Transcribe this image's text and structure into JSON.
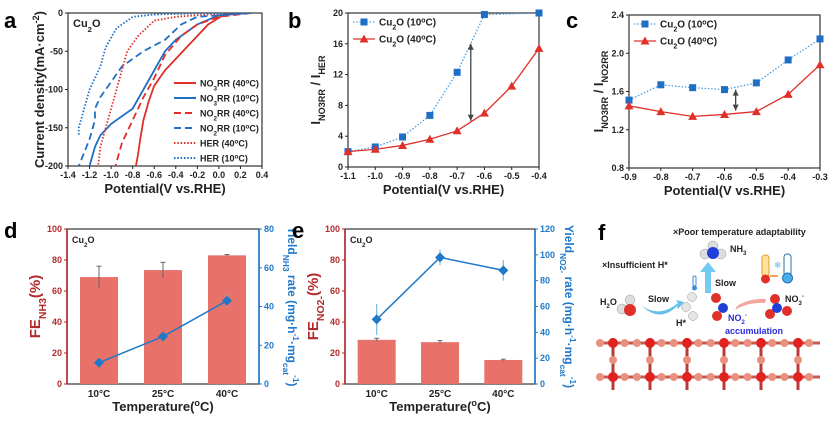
{
  "panel_labels": [
    "a",
    "b",
    "c",
    "d",
    "e",
    "f"
  ],
  "chart_data": [
    {
      "id": "a",
      "type": "line",
      "inset_label": [
        {
          "t": "Cu"
        },
        {
          "t": "2",
          "sub": true
        },
        {
          "t": "O"
        }
      ],
      "xlabel": [
        {
          "t": "Potential(V vs.RHE)"
        }
      ],
      "ylabel": [
        {
          "t": "Current density(mA·cm"
        },
        {
          "t": "-2",
          "sup": true
        },
        {
          "t": ")"
        }
      ],
      "xlim": [
        -1.4,
        0.4
      ],
      "ylim": [
        -200,
        0
      ],
      "xticks": [
        -1.4,
        -1.2,
        -1.0,
        -0.8,
        -0.6,
        -0.4,
        -0.2,
        0.0,
        0.2,
        0.4
      ],
      "xtick_labels": [
        "-1.4",
        "-1.2",
        "-1.0",
        "-0.8",
        "-0.6",
        "-0.4",
        "-0.2",
        "0.0",
        "0.2",
        "0.4"
      ],
      "yticks": [
        0,
        -50,
        -100,
        -150,
        -200
      ],
      "ytick_labels": [
        "0",
        "-50",
        "-100",
        "-150",
        "-200"
      ],
      "legend_position": "bottom-right",
      "series": [
        {
          "name": [
            {
              "t": "NO"
            },
            {
              "t": "3",
              "sub": true
            },
            {
              "t": "RR (40"
            },
            {
              "t": "o",
              "sup": true
            },
            {
              "t": "C)"
            }
          ],
          "color": "#e0302a",
          "style": "solid",
          "x": [
            0.3,
            0.05,
            -0.1,
            -0.2,
            -0.3,
            -0.4,
            -0.5,
            -0.6,
            -0.65,
            -0.7,
            -0.73,
            -0.75,
            -0.77
          ],
          "y": [
            0,
            -2,
            -15,
            -30,
            -45,
            -60,
            -75,
            -95,
            -115,
            -140,
            -165,
            -185,
            -200
          ]
        },
        {
          "name": [
            {
              "t": "NO"
            },
            {
              "t": "3",
              "sub": true
            },
            {
              "t": "RR (10"
            },
            {
              "t": "o",
              "sup": true
            },
            {
              "t": "C)"
            }
          ],
          "color": "#1f6fc5",
          "style": "solid",
          "x": [
            0.3,
            0,
            -0.2,
            -0.4,
            -0.5,
            -0.6,
            -0.7,
            -0.8,
            -0.9,
            -1.0,
            -1.1,
            -1.15,
            -1.2
          ],
          "y": [
            0,
            -3,
            -15,
            -35,
            -50,
            -75,
            -100,
            -125,
            -135,
            -145,
            -160,
            -175,
            -200
          ]
        },
        {
          "name": [
            {
              "t": "NO"
            },
            {
              "t": "2",
              "sub": true
            },
            {
              "t": "RR (40"
            },
            {
              "t": "o",
              "sup": true
            },
            {
              "t": "C)"
            }
          ],
          "color": "#e0302a",
          "style": "dashed",
          "x": [
            0.3,
            0,
            -0.2,
            -0.35,
            -0.5,
            -0.6,
            -0.7,
            -0.8,
            -0.9,
            -0.96
          ],
          "y": [
            0,
            -5,
            -15,
            -30,
            -55,
            -85,
            -110,
            -140,
            -170,
            -200
          ]
        },
        {
          "name": [
            {
              "t": "NO"
            },
            {
              "t": "2",
              "sub": true
            },
            {
              "t": "RR (10"
            },
            {
              "t": "o",
              "sup": true
            },
            {
              "t": "C)"
            }
          ],
          "color": "#1f6fc5",
          "style": "dashed",
          "x": [
            0.3,
            0,
            -0.2,
            -0.35,
            -0.5,
            -0.7,
            -0.9,
            -1.0,
            -1.1,
            -1.15,
            -1.15,
            -1.2,
            -1.3
          ],
          "y": [
            0,
            -3,
            -5,
            -15,
            -35,
            -50,
            -70,
            -90,
            -110,
            -125,
            -140,
            -165,
            -200
          ]
        },
        {
          "name": [
            {
              "t": "HER (40"
            },
            {
              "t": "o",
              "sup": true
            },
            {
              "t": "C)"
            }
          ],
          "color": "#e0302a",
          "style": "dotted",
          "x": [
            0.3,
            0,
            -0.4,
            -0.6,
            -0.75,
            -0.85,
            -0.9,
            -0.95,
            -1.0,
            -1.05,
            -1.1,
            -1.12
          ],
          "y": [
            0,
            -1,
            -5,
            -10,
            -30,
            -50,
            -75,
            -100,
            -125,
            -150,
            -175,
            -200
          ]
        },
        {
          "name": [
            {
              "t": "HER (10"
            },
            {
              "t": "o",
              "sup": true
            },
            {
              "t": "C)"
            }
          ],
          "color": "#1f6fc5",
          "style": "dotted",
          "x": [
            0.3,
            -0.2,
            -0.6,
            -0.8,
            -0.95,
            -1.05,
            -1.1,
            -1.2,
            -1.25,
            -1.3,
            -1.3
          ],
          "y": [
            0,
            -0.5,
            -2,
            -5,
            -20,
            -45,
            -70,
            -100,
            -125,
            -150,
            -160
          ]
        }
      ]
    },
    {
      "id": "b",
      "type": "line",
      "xlabel": [
        {
          "t": "Potential(V vs.RHE)"
        }
      ],
      "ylabel": [
        {
          "t": "I"
        },
        {
          "t": "NO3RR",
          "sub": true
        },
        {
          "t": " / I"
        },
        {
          "t": "HER",
          "sub": true
        }
      ],
      "xlim": [
        -1.1,
        -0.4
      ],
      "ylim": [
        0,
        20
      ],
      "xticks": [
        -1.1,
        -1.0,
        -0.9,
        -0.8,
        -0.7,
        -0.6,
        -0.5,
        -0.4
      ],
      "xtick_labels": [
        "-1.1",
        "-1.0",
        "-0.9",
        "-0.8",
        "-0.7",
        "-0.6",
        "-0.5",
        "-0.4"
      ],
      "yticks": [
        0,
        4,
        8,
        12,
        16,
        20
      ],
      "ytick_labels": [
        "0",
        "4",
        "8",
        "12",
        "16",
        "20"
      ],
      "legend_position": "top-left",
      "series": [
        {
          "name": [
            {
              "t": "Cu"
            },
            {
              "t": "2",
              "sub": true
            },
            {
              "t": "O (10"
            },
            {
              "t": "o",
              "sup": true
            },
            {
              "t": "C)"
            }
          ],
          "color": "#1f6fc5",
          "line_color": "#4a9ee0",
          "style": "dotted",
          "marker": "square",
          "x": [
            -1.1,
            -1.0,
            -0.9,
            -0.8,
            -0.7,
            -0.6,
            -0.4
          ],
          "y": [
            2.0,
            2.6,
            3.9,
            6.7,
            12.3,
            19.8,
            20
          ]
        },
        {
          "name": [
            {
              "t": "Cu"
            },
            {
              "t": "2",
              "sub": true
            },
            {
              "t": "O (40"
            },
            {
              "t": "o",
              "sup": true
            },
            {
              "t": "C)"
            }
          ],
          "color": "#e0302a",
          "line_color": "#e0302a",
          "style": "solid",
          "marker": "triangle",
          "x": [
            -1.1,
            -1.0,
            -0.9,
            -0.8,
            -0.7,
            -0.6,
            -0.5,
            -0.4
          ],
          "y": [
            2.0,
            2.3,
            2.8,
            3.6,
            4.7,
            7.0,
            10.5,
            15.4
          ]
        }
      ],
      "annotations": [
        {
          "type": "double-arrow",
          "x": -0.65,
          "y": [
            6,
            16
          ]
        }
      ]
    },
    {
      "id": "c",
      "type": "line",
      "xlabel": [
        {
          "t": "Potential(V vs.RHE)"
        }
      ],
      "ylabel": [
        {
          "t": "I"
        },
        {
          "t": "NO3RR",
          "sub": true
        },
        {
          "t": " / I"
        },
        {
          "t": "NO2RR",
          "sub": true
        }
      ],
      "xlim": [
        -0.9,
        -0.3
      ],
      "ylim": [
        0.8,
        2.4
      ],
      "xticks": [
        -0.9,
        -0.8,
        -0.7,
        -0.6,
        -0.5,
        -0.4,
        -0.3
      ],
      "xtick_labels": [
        "-0.9",
        "-0.8",
        "-0.7",
        "-0.6",
        "-0.5",
        "-0.4",
        "-0.3"
      ],
      "yticks": [
        0.8,
        1.2,
        1.6,
        2.0,
        2.4
      ],
      "ytick_labels": [
        "0.8",
        "1.2",
        "1.6",
        "2.0",
        "2.4"
      ],
      "legend_position": "top-left",
      "series": [
        {
          "name": [
            {
              "t": "Cu"
            },
            {
              "t": "2",
              "sub": true
            },
            {
              "t": "O (10"
            },
            {
              "t": "o",
              "sup": true
            },
            {
              "t": "C)"
            }
          ],
          "color": "#1f6fc5",
          "line_color": "#4a9ee0",
          "style": "dotted",
          "marker": "square",
          "x": [
            -0.9,
            -0.8,
            -0.7,
            -0.6,
            -0.5,
            -0.4,
            -0.3
          ],
          "y": [
            1.51,
            1.67,
            1.64,
            1.62,
            1.69,
            1.93,
            2.15
          ]
        },
        {
          "name": [
            {
              "t": "Cu"
            },
            {
              "t": "2",
              "sub": true
            },
            {
              "t": "O (40"
            },
            {
              "t": "o",
              "sup": true
            },
            {
              "t": "C)"
            }
          ],
          "color": "#e0302a",
          "line_color": "#e0302a",
          "style": "solid",
          "marker": "triangle",
          "x": [
            -0.9,
            -0.8,
            -0.7,
            -0.6,
            -0.5,
            -0.4,
            -0.3
          ],
          "y": [
            1.45,
            1.39,
            1.34,
            1.36,
            1.39,
            1.57,
            1.88
          ]
        }
      ],
      "annotations": [
        {
          "type": "double-arrow",
          "x": -0.565,
          "y": [
            1.4,
            1.62
          ]
        }
      ]
    },
    {
      "id": "d",
      "type": "bar",
      "inset_label": [
        {
          "t": "Cu"
        },
        {
          "t": "2",
          "sub": true
        },
        {
          "t": "O"
        }
      ],
      "categories": [
        "10°C",
        "25°C",
        "40°C"
      ],
      "xlabel": [
        {
          "t": "Temperature("
        },
        {
          "t": "o",
          "sup": true
        },
        {
          "t": "C)"
        }
      ],
      "ylabel": [
        {
          "t": "FE"
        },
        {
          "t": "NH3",
          "sub": true
        },
        {
          "t": "(%)"
        }
      ],
      "ylabel_right": [
        {
          "t": "Yield"
        },
        {
          "t": "NH3",
          "sub": true
        },
        {
          "t": " rate (mg·h"
        },
        {
          "t": "-1",
          "sup": true
        },
        {
          "t": "·mg"
        },
        {
          "t": "cat",
          "sub": true
        },
        {
          "t": "-1",
          "sup": true
        },
        {
          "t": ")"
        }
      ],
      "ylim": [
        0,
        100
      ],
      "yticks": [
        0,
        20,
        40,
        60,
        80,
        100
      ],
      "ytick_labels": [
        "0",
        "20",
        "40",
        "60",
        "80",
        "100"
      ],
      "ylim_right": [
        0,
        80
      ],
      "yticks_right": [
        0,
        20,
        40,
        60,
        80
      ],
      "ytick_labels_right": [
        "0",
        "20",
        "40",
        "60",
        "80"
      ],
      "left_color": "#b22a2a",
      "right_color": "#1f78c8",
      "bar_color": "#e8716a",
      "bars": {
        "values": [
          69,
          73.5,
          83
        ],
        "errors": [
          7,
          5,
          0.5
        ]
      },
      "line": {
        "values": [
          11,
          24.5,
          43
        ],
        "errors": [
          0.5,
          0.5,
          3
        ]
      }
    },
    {
      "id": "e",
      "type": "bar",
      "inset_label": [
        {
          "t": "Cu"
        },
        {
          "t": "2",
          "sub": true
        },
        {
          "t": "O"
        }
      ],
      "categories": [
        "10°C",
        "25°C",
        "40°C"
      ],
      "xlabel": [
        {
          "t": "Temperature("
        },
        {
          "t": "o",
          "sup": true
        },
        {
          "t": "C)"
        }
      ],
      "ylabel": [
        {
          "t": "FE"
        },
        {
          "t": "NO2-",
          "sub": true
        },
        {
          "t": "(%)"
        }
      ],
      "ylabel_right": [
        {
          "t": "Yield"
        },
        {
          "t": "NO2-",
          "sub": true
        },
        {
          "t": " rate (mg·h"
        },
        {
          "t": "-1",
          "sup": true
        },
        {
          "t": "·mg"
        },
        {
          "t": "cat",
          "sub": true
        },
        {
          "t": "-1",
          "sup": true
        },
        {
          "t": ")"
        }
      ],
      "ylim": [
        0,
        100
      ],
      "yticks": [
        0,
        20,
        40,
        60,
        80,
        100
      ],
      "ytick_labels": [
        "0",
        "20",
        "40",
        "60",
        "80",
        "100"
      ],
      "ylim_right": [
        0,
        120
      ],
      "yticks_right": [
        0,
        20,
        40,
        60,
        80,
        100,
        120
      ],
      "ytick_labels_right": [
        "0",
        "20",
        "40",
        "60",
        "80",
        "100",
        "120"
      ],
      "left_color": "#b22a2a",
      "right_color": "#1f78c8",
      "bar_color": "#e8716a",
      "bars": {
        "values": [
          28.5,
          27,
          15.5
        ],
        "errors": [
          1,
          1,
          0.5
        ]
      },
      "line": {
        "values": [
          50,
          98,
          88
        ],
        "errors": [
          12,
          6,
          8
        ]
      }
    }
  ],
  "illustration": {
    "poor_temp": "×Poor temperature adaptability",
    "nh3": "NH",
    "nh3_sub": "3",
    "insufficient_h": "×Insufficient H*",
    "slow_up": "Slow",
    "h2o": "H",
    "h2o_sub": "2",
    "h2o_end": "O",
    "slow_left": "Slow",
    "h_star": "H*",
    "no3": "NO",
    "no3_sub": "3",
    "no3_sup": "-",
    "no2": "NO",
    "no2_sub": "2",
    "no2_sup": "-",
    "accumulation": "accumulation",
    "accent_blue": "#2b2bd8"
  }
}
